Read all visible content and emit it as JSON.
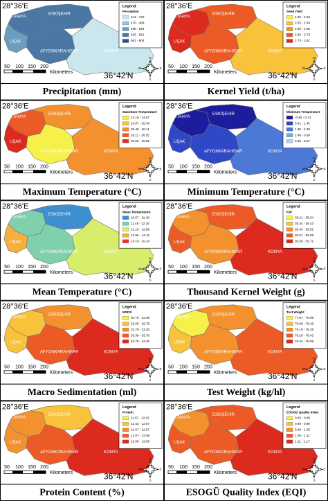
{
  "common": {
    "coord_e": "28°36'E",
    "coord_n": "36°42'N",
    "legend_heading": "Legend",
    "scale": [
      50,
      100,
      150,
      200
    ],
    "scale_unit": "Kilometers",
    "compass": [
      "N",
      "E",
      "S",
      "W"
    ],
    "cities": [
      "KÜTAHYA",
      "ESKİŞEHİR",
      "UŞAK",
      "AFYONKARAHISAR",
      "KONYA"
    ]
  },
  "panels": [
    {
      "caption": "Precipitation (mm)",
      "legend": {
        "title": "Perception",
        "items": [
          {
            "label": "441 - 470",
            "color": "#cbe7ee"
          },
          {
            "label": "470 - 498",
            "color": "#93c6da"
          },
          {
            "label": "498 - 526",
            "color": "#6a9dbf"
          },
          {
            "label": "526 - 561",
            "color": "#4a77a3"
          },
          {
            "label": "561 - 604",
            "color": "#2b5288"
          }
        ]
      }
    },
    {
      "caption": "Kernel Yield (t/ha)",
      "legend": {
        "title": "Seed Yield",
        "items": [
          {
            "label": "2.46 - 2.53",
            "color": "#f6f04a"
          },
          {
            "label": "2.53 - 2.60",
            "color": "#f8c23a"
          },
          {
            "label": "2.60 - 2.66",
            "color": "#f3912e"
          },
          {
            "label": "2.66 - 2.73",
            "color": "#ec5b25"
          },
          {
            "label": "2.73 - 2.81",
            "color": "#dd2a1f"
          }
        ]
      }
    },
    {
      "caption": "Maximum Temperature (°C)",
      "legend": {
        "title": "Maximum Temperature",
        "items": [
          {
            "label": "24.18 - 24.87",
            "color": "#f6f04a"
          },
          {
            "label": "24.87 - 25.48",
            "color": "#f8c23a"
          },
          {
            "label": "25.48 - 26.11",
            "color": "#f3912e"
          },
          {
            "label": "26.11 - 26.55",
            "color": "#ec5b25"
          },
          {
            "label": "26.55 - 26.65",
            "color": "#dd2a1f"
          }
        ]
      }
    },
    {
      "caption": "Minimum Temperature (°C)",
      "legend": {
        "title": "Minimum Temperature",
        "items": [
          {
            "label": "-0.65 - 0.41",
            "color": "#1c1c9c"
          },
          {
            "label": "0.41 - 1.45",
            "color": "#2f48c6"
          },
          {
            "label": "1.45 - 2.49",
            "color": "#4c78d6"
          },
          {
            "label": "2.49 - 3.66",
            "color": "#7ba8e4"
          },
          {
            "label": "3.66 - 5.97",
            "color": "#b9d5f1"
          }
        ]
      }
    },
    {
      "caption": "Mean Temperature (°C)",
      "legend": {
        "title": "Mean Temperature",
        "items": [
          {
            "label": "10.67 - 11.48",
            "color": "#3d8fcf"
          },
          {
            "label": "11.48 - 12.16",
            "color": "#80d0ae"
          },
          {
            "label": "12.16 - 12.96",
            "color": "#d6ee6c"
          },
          {
            "label": "12.96 - 14.10",
            "color": "#f5b03b"
          },
          {
            "label": "14.10 - 16.24",
            "color": "#e6392a"
          }
        ]
      }
    },
    {
      "caption": "Thousand Kernel Weight (g)",
      "legend": {
        "title": "KW",
        "items": [
          {
            "label": "35.21 - 35.34",
            "color": "#f6f04a"
          },
          {
            "label": "35.34 - 35.43",
            "color": "#f8c23a"
          },
          {
            "label": "35.43 - 35.51",
            "color": "#f3912e"
          },
          {
            "label": "35.51 - 35.59",
            "color": "#ec5b25"
          },
          {
            "label": "35.59 - 35.71",
            "color": "#dd2a1f"
          }
        ]
      }
    },
    {
      "caption": "Macro Sedimentation (ml)",
      "legend": {
        "title": "MSDS",
        "items": [
          {
            "label": "30.78 - 32.05",
            "color": "#f6f04a"
          },
          {
            "label": "32.05 - 32.76",
            "color": "#f8c23a"
          },
          {
            "label": "32.76 - 33.30",
            "color": "#f3912e"
          },
          {
            "label": "33.30 - 33.76",
            "color": "#ec5b25"
          },
          {
            "label": "33.76 - 34.30",
            "color": "#dd2a1f"
          }
        ]
      }
    },
    {
      "caption": "Test Weight (kg/hl)",
      "legend": {
        "title": "Test Weight",
        "items": [
          {
            "label": "77.97 - 78.09",
            "color": "#f6f04a"
          },
          {
            "label": "78.09 - 78.19",
            "color": "#f8c23a"
          },
          {
            "label": "78.19 - 78.29",
            "color": "#f3912e"
          },
          {
            "label": "78.29 - 78.42",
            "color": "#ec5b25"
          },
          {
            "label": "78.42 - 78.69",
            "color": "#dd2a1f"
          }
        ]
      }
    },
    {
      "caption": "Protein Content (%)",
      "legend": {
        "title": "Protein",
        "items": [
          {
            "label": "11.97 - 12.42",
            "color": "#f6f04a"
          },
          {
            "label": "12.42 - 12.67",
            "color": "#f8c23a"
          },
          {
            "label": "12.67 - 12.87",
            "color": "#f3912e"
          },
          {
            "label": "12.87 - 13.08",
            "color": "#ec5b25"
          },
          {
            "label": "13.08 - 13.65",
            "color": "#dd2a1f"
          }
        ]
      }
    },
    {
      "caption": "ESOGÜ Quality Index (EQI)",
      "legend": {
        "title": "ESOGÜ Quality Index",
        "items": [
          {
            "label": "0.83 - 0.90",
            "color": "#f6f04a"
          },
          {
            "label": "0.90 - 0.96",
            "color": "#f8c23a"
          },
          {
            "label": "0.96 - 1.05",
            "color": "#f3912e"
          },
          {
            "label": "1.05 - 1.11",
            "color": "#ec5b25"
          },
          {
            "label": "1.11 - 1.17",
            "color": "#dd2a1f"
          }
        ]
      }
    }
  ]
}
